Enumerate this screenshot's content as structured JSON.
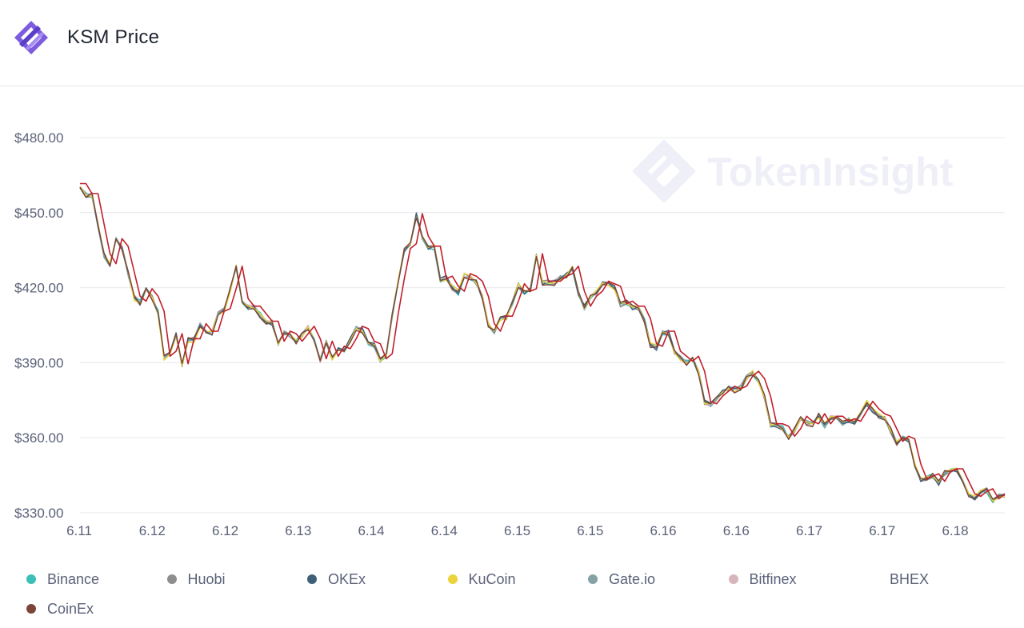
{
  "app": {
    "title": "KSM Price"
  },
  "watermark": {
    "text": "TokenInsight"
  },
  "chart_data": {
    "type": "line",
    "title": "KSM Price",
    "ylim": [
      330,
      480
    ],
    "yticks": [
      330,
      360,
      390,
      420,
      450,
      480
    ],
    "ytick_labels": [
      "$330.00",
      "$360.00",
      "$390.00",
      "$420.00",
      "$450.00",
      "$480.00"
    ],
    "x_ticks": [
      "6.11",
      "6.12",
      "6.12",
      "6.13",
      "6.14",
      "6.14",
      "6.15",
      "6.15",
      "6.16",
      "6.16",
      "6.17",
      "6.17",
      "6.18"
    ],
    "grid": true,
    "legend_position": "bottom",
    "base_series": [
      461,
      457,
      457,
      445,
      433,
      429,
      439,
      436,
      426,
      416,
      414,
      419,
      416,
      410,
      392,
      394,
      401,
      389,
      399,
      399,
      405,
      402,
      402,
      410,
      411,
      419,
      428,
      415,
      412,
      412,
      409,
      406,
      406,
      398,
      402,
      401,
      398,
      401,
      404,
      399,
      391,
      398,
      392,
      396,
      395,
      399,
      404,
      403,
      398,
      397,
      391,
      393,
      409,
      423,
      435,
      437,
      449,
      440,
      436,
      436,
      423,
      424,
      420,
      418,
      425,
      424,
      422,
      416,
      405,
      402,
      408,
      408,
      414,
      421,
      418,
      419,
      433,
      422,
      422,
      422,
      424,
      425,
      428,
      418,
      412,
      416,
      418,
      422,
      421,
      420,
      413,
      414,
      412,
      412,
      407,
      397,
      396,
      402,
      402,
      394,
      392,
      390,
      392,
      386,
      374,
      373,
      376,
      378,
      380,
      379,
      380,
      384,
      386,
      383,
      376,
      365,
      365,
      364,
      360,
      363,
      368,
      366,
      365,
      369,
      365,
      368,
      368,
      366,
      367,
      366,
      370,
      374,
      371,
      369,
      368,
      363,
      358,
      360,
      359,
      349,
      343,
      344,
      345,
      342,
      346,
      347,
      347,
      342,
      337,
      336,
      338,
      339,
      335,
      337,
      337
    ],
    "series": [
      {
        "name": "Binance",
        "color": "#3bbfb7"
      },
      {
        "name": "Huobi",
        "color": "#8e8e8e"
      },
      {
        "name": "OKEx",
        "color": "#3e6078"
      },
      {
        "name": "KuCoin",
        "color": "#ead33c"
      },
      {
        "name": "Gate.io",
        "color": "#85a3a6"
      },
      {
        "name": "Bitfinex",
        "color": "#d7b5bd"
      },
      {
        "name": "BHEX",
        "color": "#c01f2b"
      },
      {
        "name": "CoinEx",
        "color": "#7a4538"
      }
    ]
  }
}
